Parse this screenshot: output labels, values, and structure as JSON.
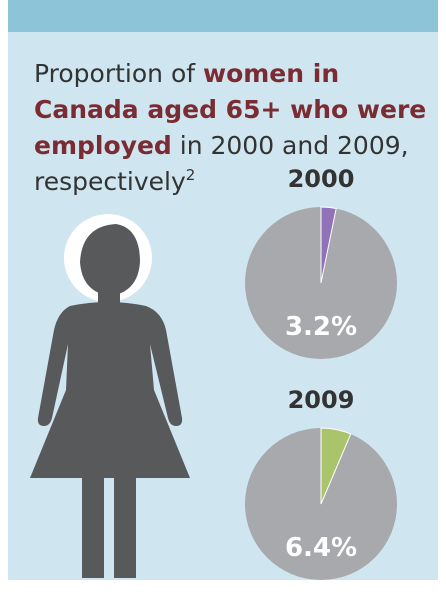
{
  "header": {
    "title_lines": [
      [
        {
          "text": "Proportion of ",
          "bold": false
        },
        {
          "text": "women in",
          "bold": true
        }
      ],
      [
        {
          "text": "Canada aged 65+ who were",
          "bold": true
        }
      ],
      [
        {
          "text": "employed",
          "bold": true
        },
        {
          "text": " in 2000 and 2009,",
          "bold": false
        }
      ],
      [
        {
          "text": "respectively",
          "bold": false
        }
      ]
    ],
    "footnote_ref": "2"
  },
  "chart_data": [
    {
      "type": "pie",
      "title": "2000",
      "values": [
        3.2
      ],
      "value_labels": [
        "3.2%"
      ],
      "colors": [
        "#8f72b8"
      ],
      "background_color": "#a7a9ac"
    },
    {
      "type": "pie",
      "title": "2009",
      "values": [
        6.4
      ],
      "value_labels": [
        "6.4%"
      ],
      "colors": [
        "#a9c46a"
      ],
      "background_color": "#a7a9ac"
    }
  ]
}
